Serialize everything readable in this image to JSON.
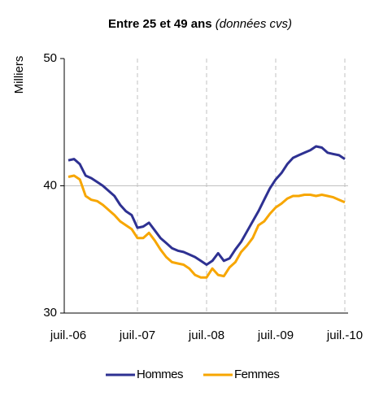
{
  "chart_data": {
    "type": "line",
    "title": "Entre 25 et 49 ans",
    "subtitle": "(données cvs)",
    "y_label": "Milliers",
    "categories": [
      "juil.-06",
      null,
      null,
      null,
      null,
      null,
      null,
      null,
      null,
      null,
      null,
      null,
      "juil.-07",
      null,
      null,
      null,
      null,
      null,
      null,
      null,
      null,
      null,
      null,
      null,
      "juil.-08",
      null,
      null,
      null,
      null,
      null,
      null,
      null,
      null,
      null,
      null,
      null,
      "juil.-09",
      null,
      null,
      null,
      null,
      null,
      null,
      null,
      null,
      null,
      null,
      null,
      "juil.-10"
    ],
    "series": [
      {
        "name": "Hommes",
        "color": "#2e3192",
        "values": [
          42.0,
          42.1,
          41.7,
          40.8,
          40.6,
          40.3,
          40.0,
          39.6,
          39.2,
          38.5,
          38.0,
          37.7,
          36.7,
          36.8,
          37.1,
          36.5,
          35.9,
          35.5,
          35.1,
          34.9,
          34.8,
          34.6,
          34.4,
          34.1,
          33.8,
          34.1,
          34.7,
          34.1,
          34.3,
          35.0,
          35.6,
          36.4,
          37.2,
          38.0,
          38.9,
          39.8,
          40.5,
          41.0,
          41.7,
          42.2,
          42.4,
          42.6,
          42.8,
          43.1,
          43.0,
          42.6,
          42.5,
          42.4,
          42.1
        ]
      },
      {
        "name": "Femmes",
        "color": "#f7a600",
        "values": [
          40.7,
          40.8,
          40.5,
          39.2,
          38.9,
          38.8,
          38.5,
          38.1,
          37.7,
          37.2,
          36.9,
          36.6,
          35.9,
          35.9,
          36.3,
          35.7,
          35.0,
          34.4,
          34.0,
          33.9,
          33.8,
          33.5,
          33.0,
          32.8,
          32.8,
          33.5,
          33.0,
          32.9,
          33.6,
          34.0,
          34.8,
          35.3,
          35.9,
          36.9,
          37.2,
          37.8,
          38.3,
          38.6,
          39.0,
          39.2,
          39.2,
          39.3,
          39.3,
          39.2,
          39.3,
          39.2,
          39.1,
          38.9,
          38.7
        ]
      }
    ],
    "ylim": [
      30,
      50
    ],
    "yticks": [
      30,
      40,
      50
    ],
    "grid": true,
    "legend": "bottom"
  }
}
